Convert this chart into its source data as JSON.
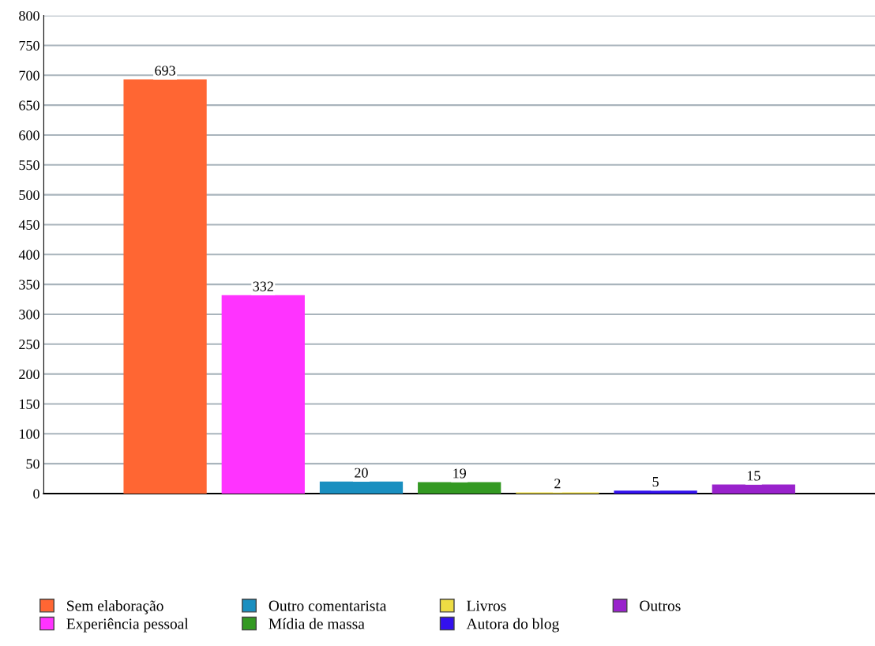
{
  "chart_data": {
    "type": "bar",
    "categories": [
      null
    ],
    "series": [
      {
        "name": "Sem elaboração",
        "color": "#ff6633",
        "values": [
          693
        ]
      },
      {
        "name": "Experiência pessoal",
        "color": "#ff33ff",
        "values": [
          332
        ]
      },
      {
        "name": "Outro comentarista",
        "color": "#1a8fc0",
        "values": [
          20
        ]
      },
      {
        "name": "Mídia de massa",
        "color": "#339922",
        "values": [
          19
        ]
      },
      {
        "name": "Livros",
        "color": "#eedd44",
        "values": [
          2
        ]
      },
      {
        "name": "Autora do blog",
        "color": "#3311ee",
        "values": [
          5
        ]
      },
      {
        "name": "Outros",
        "color": "#9922cc",
        "values": [
          15
        ]
      }
    ],
    "ylim": [
      0,
      800
    ],
    "yticks": [
      0,
      50,
      100,
      150,
      200,
      250,
      300,
      350,
      400,
      450,
      500,
      550,
      600,
      650,
      700,
      750,
      800
    ],
    "grid": "y",
    "legend": "bottom",
    "data_labels": true
  }
}
